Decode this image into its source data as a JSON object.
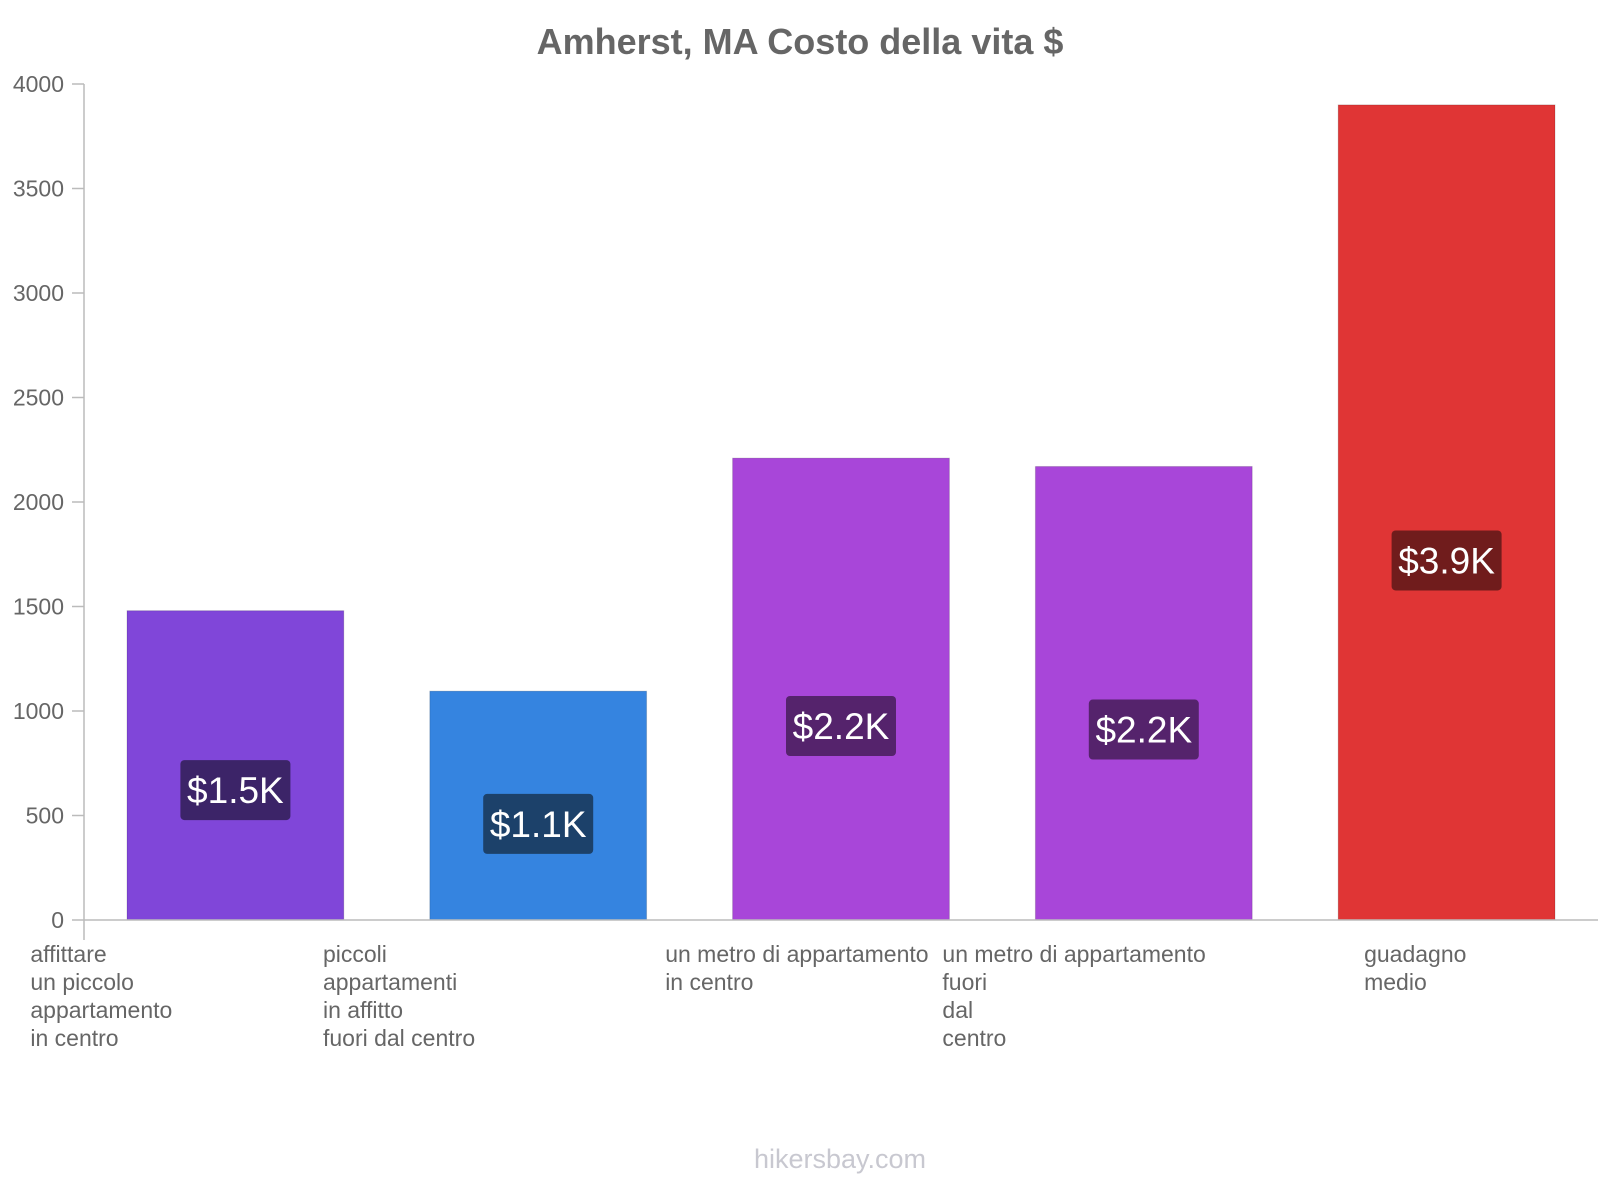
{
  "chart_data": {
    "type": "bar",
    "title": "Amherst, MA Costo della vita $",
    "xlabel": "",
    "ylabel": "",
    "ylim": [
      0,
      4000
    ],
    "yticks": [
      0,
      500,
      1000,
      1500,
      2000,
      2500,
      3000,
      3500,
      4000
    ],
    "categories": [
      [
        "affittare",
        "un piccolo",
        "appartamento",
        "in centro"
      ],
      [
        "piccoli",
        "appartamenti",
        "in affitto",
        "fuori dal centro"
      ],
      [
        "un metro di appartamento",
        "in centro"
      ],
      [
        "un metro di appartamento",
        "fuori",
        "dal",
        "centro"
      ],
      [
        "guadagno",
        "medio"
      ]
    ],
    "values": [
      1480,
      1095,
      2210,
      2170,
      3900
    ],
    "data_labels": [
      "$1.5K",
      "$1.1K",
      "$2.2K",
      "$2.2K",
      "$3.9K"
    ],
    "bar_colors": [
      "#8046d9",
      "#3584e0",
      "#a846d9",
      "#a846d9",
      "#e03535"
    ],
    "label_bg_colors": [
      "#3c2468",
      "#1c416a",
      "#55236c",
      "#55236c",
      "#701c1c"
    ],
    "grid": false,
    "legend": "none"
  },
  "watermark": "hikersbay.com"
}
